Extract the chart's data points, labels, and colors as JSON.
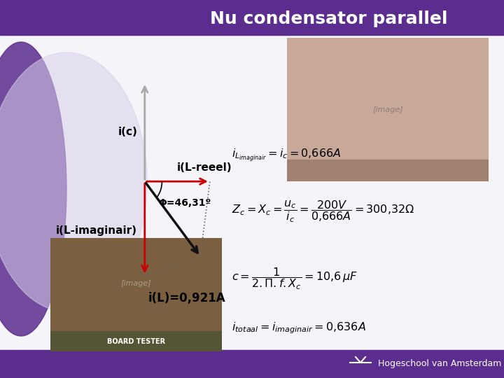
{
  "title": "Nu condensator parallel",
  "title_color": "#1a1a1a",
  "title_fontsize": 18,
  "slide_bg": "#f5f5f8",
  "header_bg": "#ffffff",
  "label_ic": "i(c)",
  "label_il_reeel": "i(L-reeel)",
  "label_phi": "Φ=46,31º",
  "label_il_imaginair": "i(L-imaginair)",
  "label_il": "i(L)=0,921A",
  "arrow_color_ic": "#aaaaaa",
  "arrow_color_il_reeel": "#cc0000",
  "arrow_color_il_imag": "#cc0000",
  "arrow_color_il": "#111111",
  "dotted_color": "#666666",
  "purple_dark": "#5b2d8e",
  "purple_mid": "#7a4aaa",
  "purple_light": "#c8b8e0",
  "footer_text": "Hogeschool van Amsterdam",
  "footer_fontsize": 9
}
